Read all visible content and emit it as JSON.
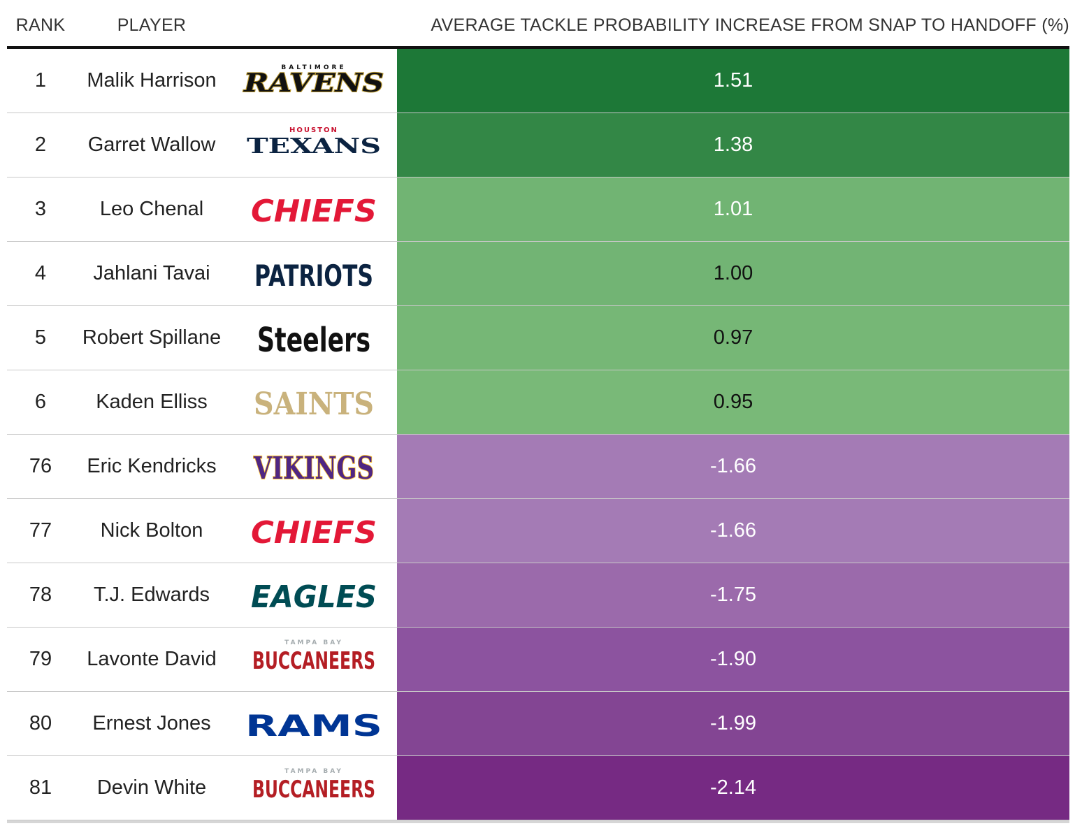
{
  "chart_data": {
    "type": "table",
    "columns": [
      "RANK",
      "PLAYER",
      "AVERAGE TACKLE PROBABILITY INCREASE FROM SNAP TO HANDOFF (%)"
    ],
    "rows": [
      {
        "rank": "1",
        "player": "Malik Harrison",
        "team": "RAVENS",
        "team_small": "BALTIMORE",
        "value": "1.51",
        "fill": "#1d7837",
        "text_color": "#ffffff"
      },
      {
        "rank": "2",
        "player": "Garret Wallow",
        "team": "TEXANS",
        "team_small": "HOUSTON",
        "value": "1.38",
        "fill": "#338746",
        "text_color": "#ffffff"
      },
      {
        "rank": "3",
        "player": "Leo Chenal",
        "team": "CHIEFS",
        "team_small": "",
        "value": "1.01",
        "fill": "#71b473",
        "text_color": "#ffffff"
      },
      {
        "rank": "4",
        "player": "Jahlani Tavai",
        "team": "PATRIOTS",
        "team_small": "",
        "value": "1.00",
        "fill": "#72b474",
        "text_color": "#111111"
      },
      {
        "rank": "5",
        "player": "Robert Spillane",
        "team": "Steelers",
        "team_small": "",
        "value": "0.97",
        "fill": "#76b776",
        "text_color": "#111111"
      },
      {
        "rank": "6",
        "player": "Kaden Elliss",
        "team": "SAINTS",
        "team_small": "",
        "value": "0.95",
        "fill": "#79b978",
        "text_color": "#111111"
      },
      {
        "rank": "76",
        "player": "Eric Kendricks",
        "team": "VIKINGS",
        "team_small": "",
        "value": "-1.66",
        "fill": "#a47bb5",
        "text_color": "#ffffff"
      },
      {
        "rank": "77",
        "player": "Nick Bolton",
        "team": "CHIEFS",
        "team_small": "",
        "value": "-1.66",
        "fill": "#a47bb5",
        "text_color": "#ffffff"
      },
      {
        "rank": "78",
        "player": "T.J. Edwards",
        "team": "EAGLES",
        "team_small": "",
        "value": "-1.75",
        "fill": "#9b6aab",
        "text_color": "#ffffff"
      },
      {
        "rank": "79",
        "player": "Lavonte David",
        "team": "BUCCANEERS",
        "team_small": "TAMPA BAY",
        "value": "-1.90",
        "fill": "#8c539f",
        "text_color": "#ffffff"
      },
      {
        "rank": "80",
        "player": "Ernest Jones",
        "team": "RAMS",
        "team_small": "",
        "value": "-1.99",
        "fill": "#834593",
        "text_color": "#ffffff"
      },
      {
        "rank": "81",
        "player": "Devin White",
        "team": "BUCCANEERS",
        "team_small": "TAMPA BAY",
        "value": "-2.14",
        "fill": "#762a83",
        "text_color": "#ffffff"
      }
    ]
  },
  "logos": {
    "RAVENS": {
      "color": "#111111",
      "outline": "#b8972e",
      "style": "italic-serif"
    },
    "TEXANS": {
      "color": "#0b2341",
      "accent": "#c8102e",
      "style": "wide-serif"
    },
    "CHIEFS": {
      "color": "#e31837",
      "style": "italic-heavy"
    },
    "PATRIOTS": {
      "color": "#0b2341",
      "style": "condensed-heavy"
    },
    "Steelers": {
      "color": "#111111",
      "style": "stencil"
    },
    "SAINTS": {
      "color": "#c9b27c",
      "style": "serif"
    },
    "VIKINGS": {
      "color": "#4f2683",
      "outline": "#ffc62f",
      "style": "serif"
    },
    "EAGLES": {
      "color": "#004c54",
      "style": "italic-heavy"
    },
    "BUCCANEERS": {
      "color": "#b41e24",
      "accent": "#a5acaf",
      "style": "condensed-heavy"
    },
    "RAMS": {
      "color": "#003594",
      "style": "wide-heavy"
    }
  }
}
